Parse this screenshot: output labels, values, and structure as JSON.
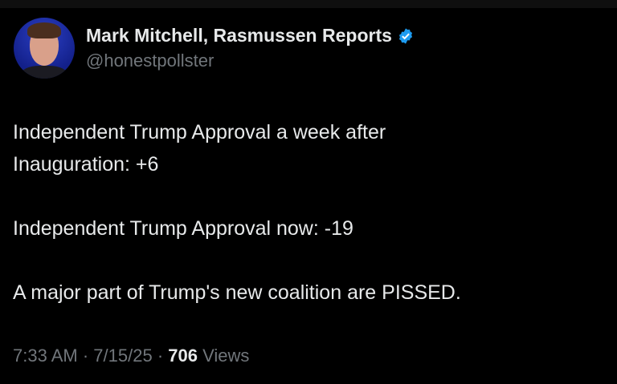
{
  "author": {
    "name": "Mark Mitchell, Rasmussen Reports",
    "handle": "@honestpollster",
    "verified": true,
    "verified_color": "#1d9bf0"
  },
  "tweet": {
    "lines": [
      "Independent Trump Approval a week after",
      "Inauguration: +6",
      "Independent Trump Approval now: -19",
      "A major part of Trump's new coalition are PISSED."
    ]
  },
  "footer": {
    "time": "7:33 AM",
    "sep": "·",
    "date": "7/15/25",
    "views_count": "706",
    "views_label": "Views"
  }
}
